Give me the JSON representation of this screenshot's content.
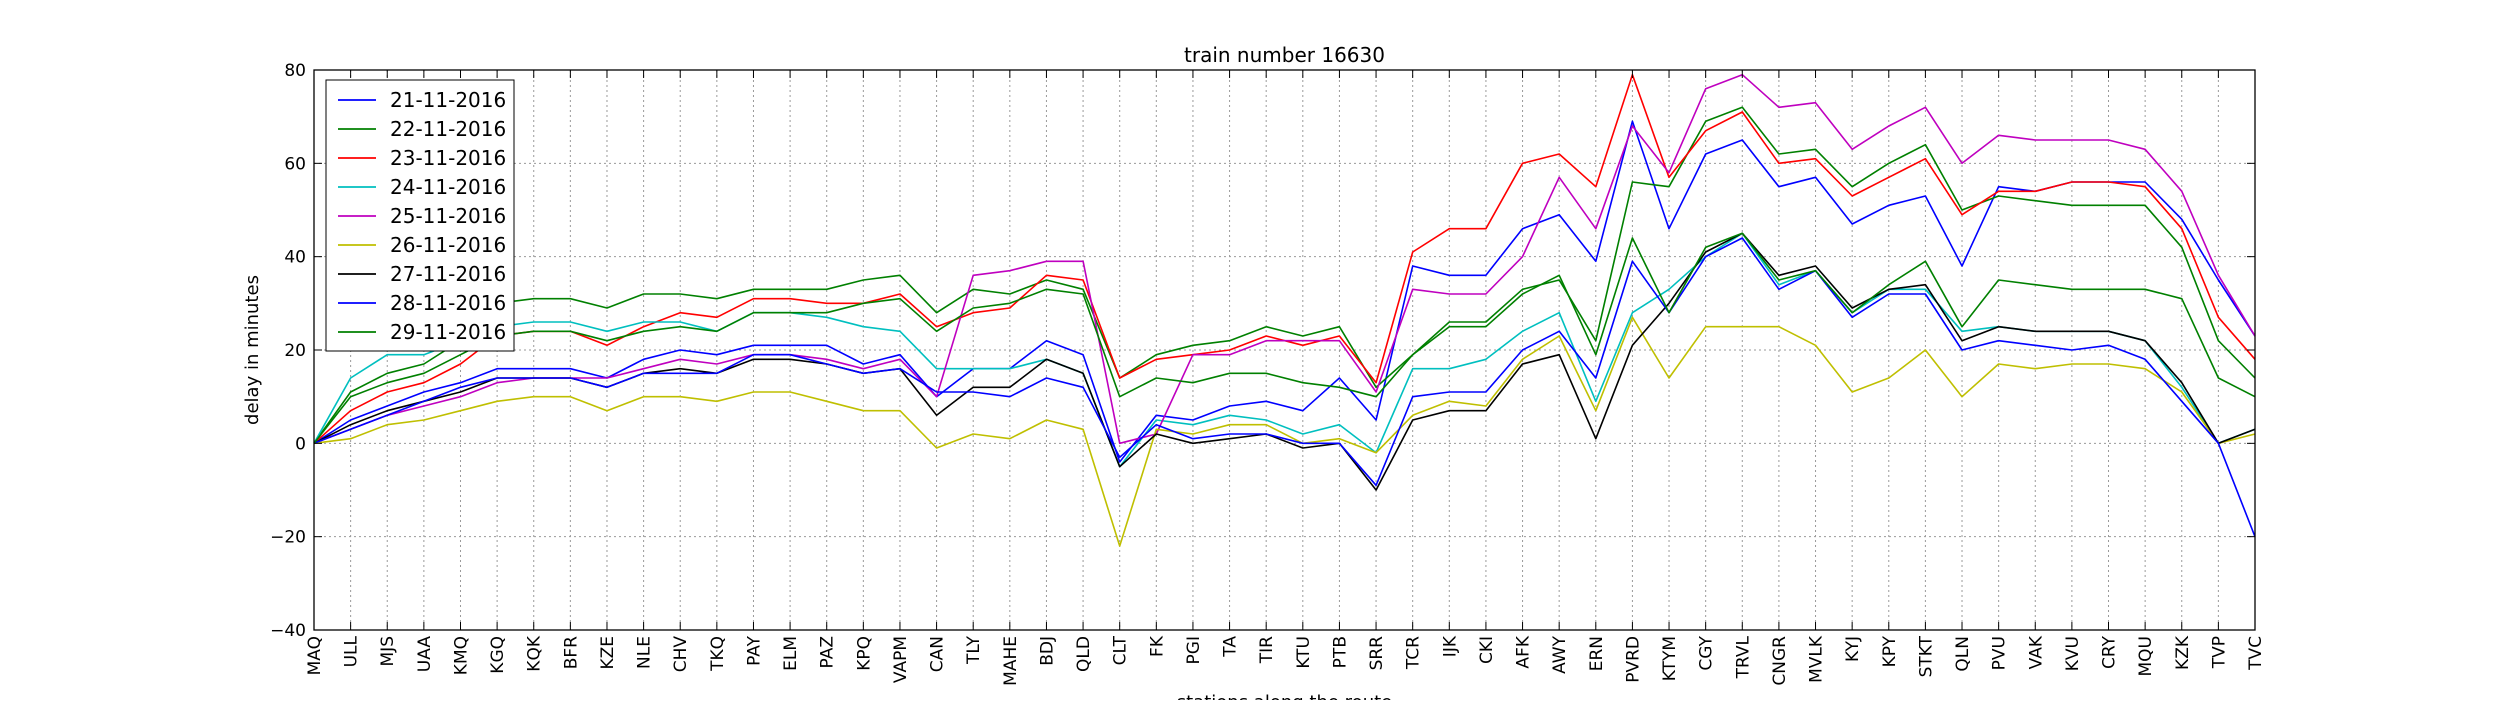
{
  "chart_data": {
    "type": "line",
    "title": "train number 16630",
    "xlabel": "stations along the route",
    "ylabel": "delay in minutes",
    "ylim": [
      -40,
      80
    ],
    "yticks": [
      -40,
      -20,
      0,
      20,
      40,
      60,
      80
    ],
    "grid": true,
    "legend_position": "top-left",
    "categories": [
      "MAQ",
      "ULL",
      "MJS",
      "UAA",
      "KMQ",
      "KGQ",
      "KQK",
      "BFR",
      "KZE",
      "NLE",
      "CHV",
      "TKQ",
      "PAY",
      "ELM",
      "PAZ",
      "KPQ",
      "VAPM",
      "CAN",
      "TLY",
      "MAHE",
      "BDJ",
      "QLD",
      "CLT",
      "FK",
      "PGI",
      "TA",
      "TIR",
      "KTU",
      "PTB",
      "SRR",
      "TCR",
      "IJK",
      "CKI",
      "AFK",
      "AWY",
      "ERN",
      "PVRD",
      "KTYM",
      "CGY",
      "TRVL",
      "CNGR",
      "MVLK",
      "KYJ",
      "KPY",
      "STKT",
      "QLN",
      "PVU",
      "VAK",
      "KVU",
      "CRY",
      "MQU",
      "KZK",
      "TVP",
      "TVC"
    ],
    "series": [
      {
        "name": "21-11-2016",
        "color": "#0000ff",
        "values": [
          0,
          5,
          8,
          11,
          13,
          16,
          16,
          16,
          14,
          18,
          20,
          19,
          21,
          21,
          21,
          17,
          19,
          10,
          16,
          16,
          22,
          19,
          -4,
          6,
          5,
          8,
          9,
          7,
          14,
          5,
          38,
          36,
          36,
          46,
          49,
          39,
          69,
          46,
          62,
          65,
          55,
          57,
          47,
          51,
          53,
          38,
          55,
          54,
          56,
          56,
          56,
          48,
          35,
          23
        ]
      },
      {
        "name": "22-11-2016",
        "color": "#008000",
        "values": [
          0,
          11,
          15,
          17,
          22,
          30,
          31,
          31,
          29,
          32,
          32,
          31,
          33,
          33,
          33,
          35,
          36,
          28,
          33,
          32,
          35,
          33,
          14,
          19,
          21,
          22,
          25,
          23,
          25,
          12,
          19,
          26,
          26,
          33,
          35,
          22,
          56,
          55,
          69,
          72,
          62,
          63,
          55,
          60,
          64,
          50,
          53,
          52,
          51,
          51,
          51,
          42,
          22,
          14
        ]
      },
      {
        "name": "23-11-2016",
        "color": "#ff0000",
        "values": [
          0,
          7,
          11,
          13,
          17,
          23,
          24,
          24,
          21,
          25,
          28,
          27,
          31,
          31,
          30,
          30,
          32,
          25,
          28,
          29,
          36,
          35,
          14,
          18,
          19,
          20,
          23,
          21,
          23,
          13,
          41,
          46,
          46,
          60,
          62,
          55,
          79,
          57,
          67,
          71,
          60,
          61,
          53,
          57,
          61,
          49,
          54,
          54,
          56,
          56,
          55,
          46,
          27,
          18
        ]
      },
      {
        "name": "24-11-2016",
        "color": "#00bfbf",
        "values": [
          0,
          14,
          19,
          19,
          22,
          25,
          26,
          26,
          24,
          26,
          26,
          24,
          28,
          28,
          27,
          25,
          24,
          16,
          16,
          16,
          18,
          15,
          -5,
          5,
          4,
          6,
          5,
          2,
          4,
          -2,
          16,
          16,
          18,
          24,
          28,
          9,
          28,
          33,
          40,
          45,
          34,
          37,
          28,
          33,
          33,
          24,
          25,
          24,
          24,
          24,
          22,
          12,
          0,
          3
        ]
      },
      {
        "name": "25-11-2016",
        "color": "#bf00bf",
        "values": [
          0,
          3,
          6,
          8,
          10,
          13,
          14,
          14,
          14,
          16,
          18,
          17,
          19,
          19,
          18,
          16,
          18,
          10,
          36,
          37,
          39,
          39,
          0,
          2,
          19,
          19,
          22,
          22,
          22,
          11,
          33,
          32,
          32,
          40,
          57,
          46,
          68,
          58,
          76,
          79,
          72,
          73,
          63,
          68,
          72,
          60,
          66,
          65,
          65,
          65,
          63,
          54,
          36,
          23
        ]
      },
      {
        "name": "26-11-2016",
        "color": "#bfbf00",
        "values": [
          0,
          1,
          4,
          5,
          7,
          9,
          10,
          10,
          7,
          10,
          10,
          9,
          11,
          11,
          9,
          7,
          7,
          -1,
          2,
          1,
          5,
          3,
          -22,
          3,
          2,
          4,
          4,
          0,
          1,
          -2,
          6,
          9,
          8,
          18,
          23,
          7,
          27,
          14,
          25,
          25,
          25,
          21,
          11,
          14,
          20,
          10,
          17,
          16,
          17,
          17,
          16,
          11,
          0,
          2
        ]
      },
      {
        "name": "27-11-2016",
        "color": "#000000",
        "values": [
          0,
          4,
          7,
          9,
          11,
          14,
          14,
          14,
          12,
          15,
          16,
          15,
          18,
          18,
          17,
          15,
          16,
          6,
          12,
          12,
          18,
          15,
          -5,
          2,
          0,
          1,
          2,
          -1,
          0,
          -10,
          5,
          7,
          7,
          17,
          19,
          1,
          21,
          30,
          41,
          45,
          36,
          38,
          29,
          33,
          34,
          22,
          25,
          24,
          24,
          24,
          22,
          13,
          0,
          3
        ]
      },
      {
        "name": "28-11-2016",
        "color": "#0000ff",
        "values": [
          0,
          3,
          6,
          9,
          12,
          14,
          14,
          14,
          12,
          15,
          15,
          15,
          19,
          19,
          17,
          15,
          16,
          11,
          11,
          10,
          14,
          12,
          -3,
          4,
          1,
          2,
          2,
          0,
          0,
          -9,
          10,
          11,
          11,
          20,
          24,
          14,
          39,
          28,
          40,
          44,
          33,
          37,
          27,
          32,
          32,
          20,
          22,
          21,
          20,
          21,
          18,
          9,
          0,
          -20
        ]
      },
      {
        "name": "29-11-2016",
        "color": "#008000",
        "values": [
          0,
          10,
          13,
          15,
          19,
          23,
          24,
          24,
          22,
          24,
          25,
          24,
          28,
          28,
          28,
          30,
          31,
          24,
          29,
          30,
          33,
          32,
          10,
          14,
          13,
          15,
          15,
          13,
          12,
          10,
          19,
          25,
          25,
          32,
          36,
          19,
          44,
          28,
          42,
          45,
          35,
          37,
          28,
          34,
          39,
          25,
          35,
          34,
          33,
          33,
          33,
          31,
          14,
          10
        ]
      }
    ]
  }
}
